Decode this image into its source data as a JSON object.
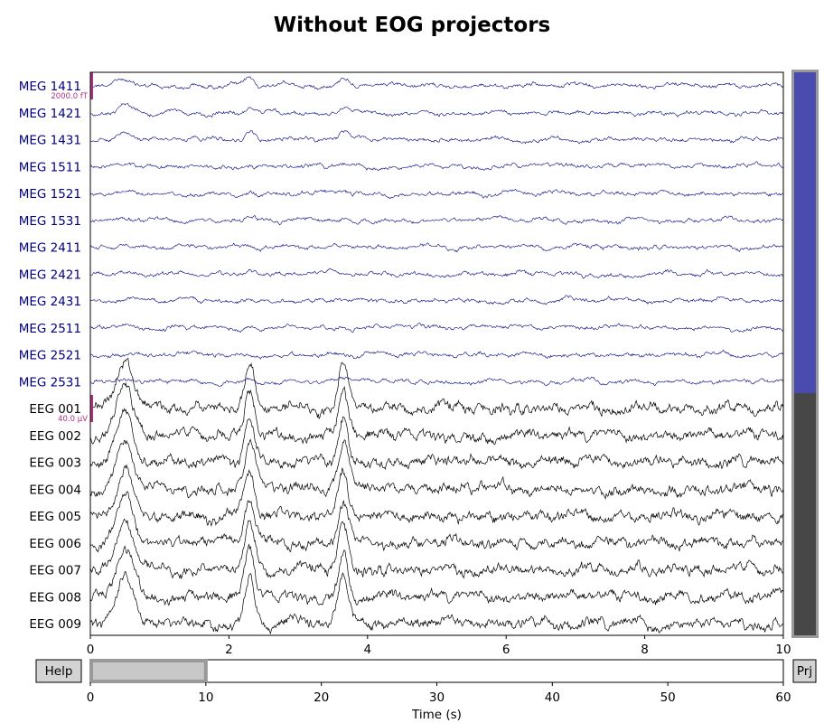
{
  "chart_data": {
    "type": "line",
    "title": "Without EOG projectors",
    "xlim": [
      0,
      10
    ],
    "x_ticks": [
      "0",
      "2",
      "4",
      "6",
      "8",
      "10"
    ],
    "channels": [
      {
        "name": "MEG 1411",
        "type": "mag"
      },
      {
        "name": "MEG 1421",
        "type": "mag"
      },
      {
        "name": "MEG 1431",
        "type": "mag"
      },
      {
        "name": "MEG 1511",
        "type": "mag"
      },
      {
        "name": "MEG 1521",
        "type": "mag"
      },
      {
        "name": "MEG 1531",
        "type": "mag"
      },
      {
        "name": "MEG 2411",
        "type": "mag"
      },
      {
        "name": "MEG 2421",
        "type": "mag"
      },
      {
        "name": "MEG 2431",
        "type": "mag"
      },
      {
        "name": "MEG 2511",
        "type": "mag"
      },
      {
        "name": "MEG 2521",
        "type": "mag"
      },
      {
        "name": "MEG 2531",
        "type": "mag"
      },
      {
        "name": "EEG 001",
        "type": "eeg"
      },
      {
        "name": "EEG 002",
        "type": "eeg"
      },
      {
        "name": "EEG 003",
        "type": "eeg"
      },
      {
        "name": "EEG 004",
        "type": "eeg"
      },
      {
        "name": "EEG 005",
        "type": "eeg"
      },
      {
        "name": "EEG 006",
        "type": "eeg"
      },
      {
        "name": "EEG 007",
        "type": "eeg"
      },
      {
        "name": "EEG 008",
        "type": "eeg"
      },
      {
        "name": "EEG 009",
        "type": "eeg"
      }
    ],
    "blink_times_s": [
      0.5,
      2.3,
      3.65
    ],
    "scale_bars": {
      "mag": "2000.0 fT",
      "eeg": "40.0 µV"
    },
    "navigation": {
      "xlim": [
        0,
        60
      ],
      "x_ticks": [
        "0",
        "10",
        "20",
        "30",
        "40",
        "50",
        "60"
      ],
      "xlabel": "Time (s)",
      "window_s": [
        0,
        10
      ]
    },
    "channel_scroll": {
      "visible_fraction": 0.57,
      "offset_fraction": 0
    }
  },
  "colors": {
    "mag": "#000080",
    "eeg": "#000000",
    "scale_bar": "#b03080",
    "scroll_mag": "#4a4aaf",
    "scroll_eeg": "#474747",
    "scroll_border": "#999999",
    "nav_window": "#c8c8c8"
  },
  "buttons": {
    "help": "Help",
    "projectors": "Prj"
  }
}
